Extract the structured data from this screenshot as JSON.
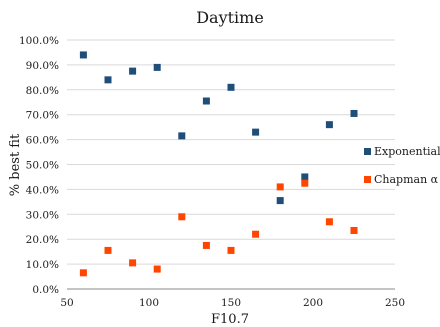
{
  "chart_data": {
    "type": "scatter",
    "title": "Daytime",
    "xlabel": "F10.7",
    "ylabel": "% best fit",
    "xlim": [
      50,
      250
    ],
    "ylim": [
      0,
      1.0
    ],
    "xticks": [
      "50",
      "100",
      "150",
      "200",
      "250"
    ],
    "yticks": [
      "0.0%",
      "10.0%",
      "20.0%",
      "30.0%",
      "40.0%",
      "50.0%",
      "60.0%",
      "70.0%",
      "80.0%",
      "90.0%",
      "100.0%"
    ],
    "grid": "horizontal",
    "legend_position": "right",
    "series": [
      {
        "name": "Exponential",
        "color": "#1f4e79",
        "marker": "square",
        "points": [
          {
            "x": 60,
            "y": 0.94
          },
          {
            "x": 75,
            "y": 0.84
          },
          {
            "x": 90,
            "y": 0.875
          },
          {
            "x": 105,
            "y": 0.89
          },
          {
            "x": 120,
            "y": 0.615
          },
          {
            "x": 135,
            "y": 0.755
          },
          {
            "x": 150,
            "y": 0.81
          },
          {
            "x": 165,
            "y": 0.63
          },
          {
            "x": 180,
            "y": 0.355
          },
          {
            "x": 195,
            "y": 0.45
          },
          {
            "x": 210,
            "y": 0.66
          },
          {
            "x": 225,
            "y": 0.705
          }
        ]
      },
      {
        "name": "Chapman α",
        "color": "#ff4500",
        "marker": "square",
        "points": [
          {
            "x": 60,
            "y": 0.065
          },
          {
            "x": 75,
            "y": 0.155
          },
          {
            "x": 90,
            "y": 0.105
          },
          {
            "x": 105,
            "y": 0.08
          },
          {
            "x": 120,
            "y": 0.29
          },
          {
            "x": 135,
            "y": 0.175
          },
          {
            "x": 150,
            "y": 0.155
          },
          {
            "x": 165,
            "y": 0.22
          },
          {
            "x": 180,
            "y": 0.41
          },
          {
            "x": 195,
            "y": 0.425
          },
          {
            "x": 210,
            "y": 0.27
          },
          {
            "x": 225,
            "y": 0.235
          }
        ]
      }
    ]
  }
}
